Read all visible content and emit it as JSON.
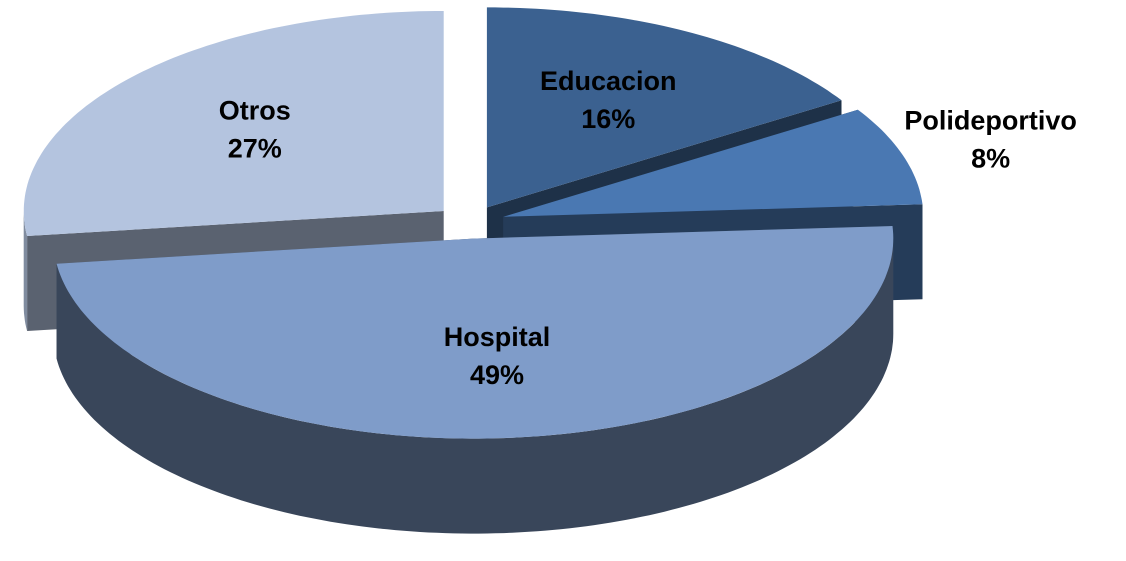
{
  "chart_data": {
    "type": "pie3d",
    "categories": [
      "Educacion",
      "Polideportivo",
      "Hospital",
      "Otros"
    ],
    "values": [
      16,
      8,
      49,
      27
    ],
    "value_labels": [
      "16%",
      "8%",
      "49%",
      "27%"
    ],
    "colors": [
      "#3b6190",
      "#4a78b2",
      "#7f9cc9",
      "#b4c4df"
    ]
  }
}
